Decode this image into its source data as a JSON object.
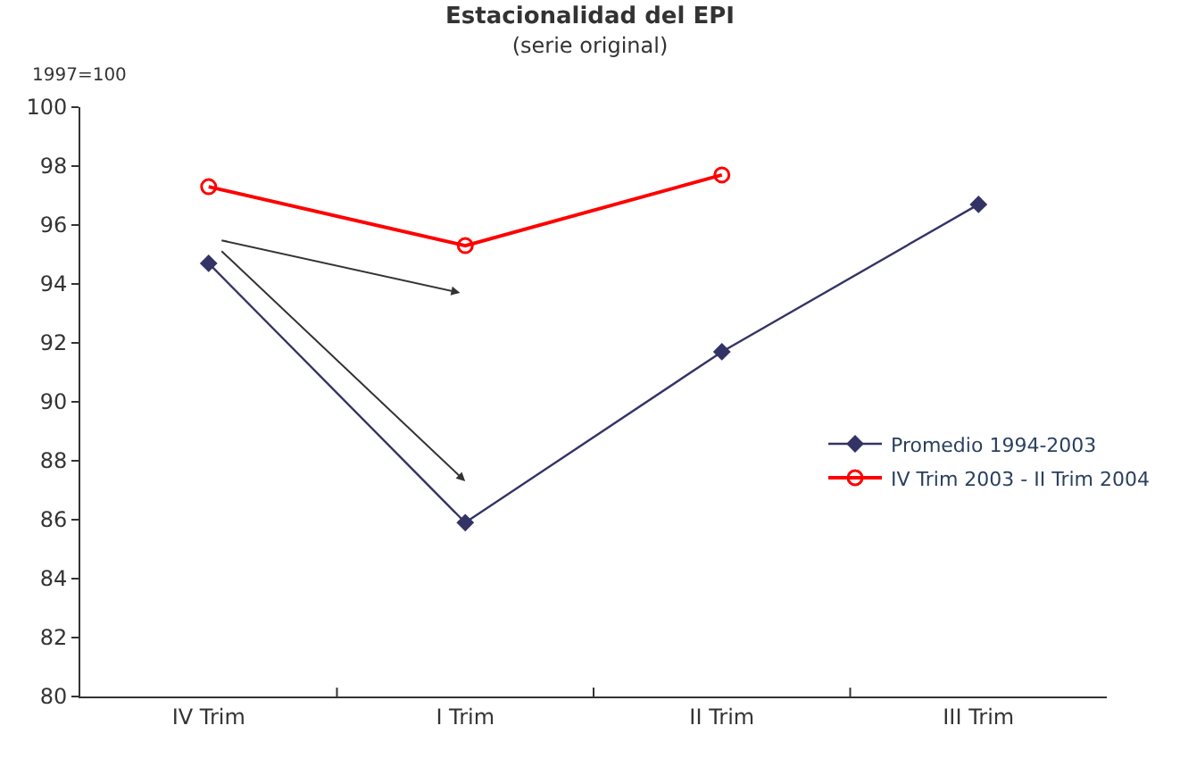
{
  "chart_data": {
    "type": "line",
    "title": "Estacionalidad del EPI",
    "subtitle": "(serie original)",
    "annotations": [
      "1997=100"
    ],
    "categories": [
      "IV Trim",
      "I Trim",
      "II Trim",
      "III Trim"
    ],
    "series": [
      {
        "name": "Promedio 1994-2003",
        "color": "#333366",
        "marker": "diamond",
        "values": [
          94.7,
          85.9,
          91.7,
          96.7
        ]
      },
      {
        "name": "IV Trim 2003 - II Trim 2004",
        "color": "#ff0000",
        "marker": "circle",
        "values": [
          97.3,
          95.3,
          97.7,
          null
        ]
      }
    ],
    "ylim": [
      80,
      100
    ],
    "yticks": [
      80,
      82,
      84,
      86,
      88,
      90,
      92,
      94,
      96,
      98,
      100
    ],
    "legend": "right",
    "line_style": "solid"
  }
}
